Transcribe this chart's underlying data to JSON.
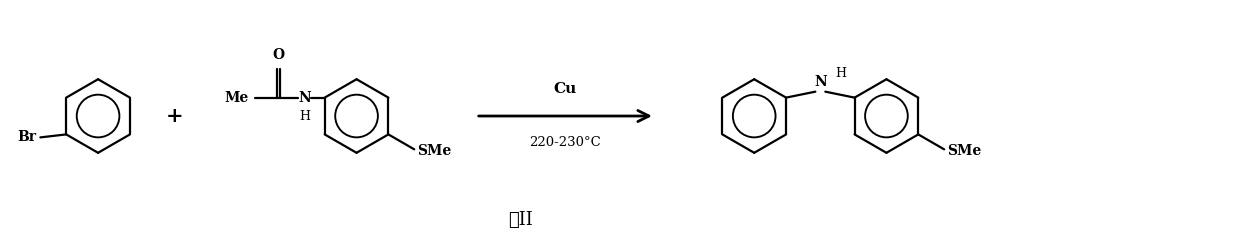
{
  "caption": "式II",
  "arrow_label_top": "Cu",
  "arrow_label_bottom": "220-230°C",
  "background_color": "#ffffff",
  "line_color": "#000000",
  "text_color": "#000000",
  "figsize": [
    12.4,
    2.38
  ],
  "dpi": 100
}
